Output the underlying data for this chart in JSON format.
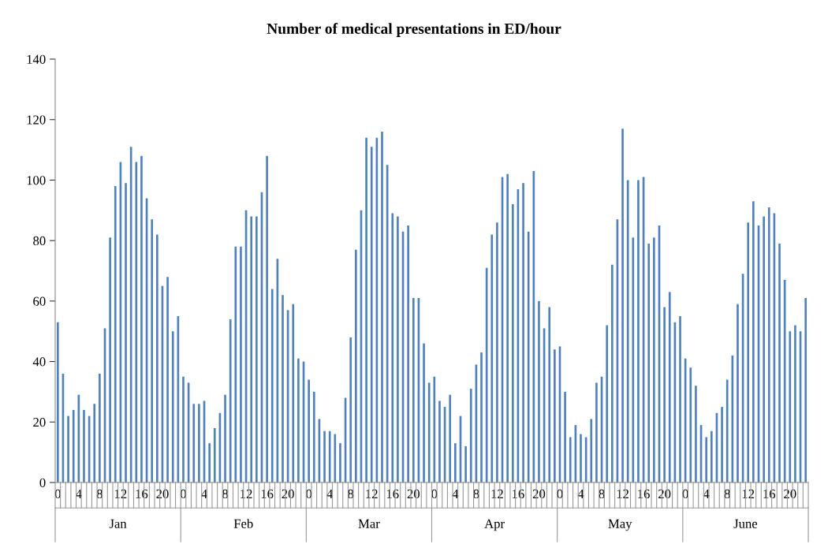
{
  "chart_data": {
    "type": "bar",
    "title": "Number of medical presentations in ED/hour",
    "categories": [
      "0",
      null,
      null,
      null,
      "4",
      null,
      null,
      null,
      "8",
      null,
      null,
      null,
      "12",
      null,
      null,
      null,
      "16",
      null,
      null,
      null,
      "20",
      null,
      null,
      null,
      "0",
      null,
      null,
      null,
      "4",
      null,
      null,
      null,
      "8",
      null,
      null,
      null,
      "12",
      null,
      null,
      null,
      "16",
      null,
      null,
      null,
      "20",
      null,
      null,
      null,
      "0",
      null,
      null,
      null,
      "4",
      null,
      null,
      null,
      "8",
      null,
      null,
      null,
      "12",
      null,
      null,
      null,
      "16",
      null,
      null,
      null,
      "20",
      null,
      null,
      null,
      "0",
      null,
      null,
      null,
      "4",
      null,
      null,
      null,
      "8",
      null,
      null,
      null,
      "12",
      null,
      null,
      null,
      "16",
      null,
      null,
      null,
      "20",
      null,
      null,
      null,
      "0",
      null,
      null,
      null,
      "4",
      null,
      null,
      null,
      "8",
      null,
      null,
      null,
      "12",
      null,
      null,
      null,
      "16",
      null,
      null,
      null,
      "20",
      null,
      null,
      null,
      "0",
      null,
      null,
      null,
      "4",
      null,
      null,
      null,
      "8",
      null,
      null,
      null,
      "12",
      null,
      null,
      null,
      "16",
      null,
      null,
      null,
      "20",
      null,
      null,
      null
    ],
    "values": [
      53,
      36,
      22,
      24,
      29,
      24,
      22,
      26,
      36,
      51,
      81,
      98,
      106,
      99,
      111,
      106,
      108,
      94,
      87,
      82,
      65,
      68,
      50,
      55,
      35,
      33,
      26,
      26,
      27,
      13,
      18,
      23,
      29,
      54,
      78,
      78,
      90,
      88,
      88,
      96,
      108,
      64,
      74,
      62,
      57,
      59,
      41,
      40,
      34,
      30,
      21,
      17,
      17,
      16,
      13,
      28,
      48,
      77,
      90,
      114,
      111,
      114,
      116,
      105,
      89,
      88,
      83,
      85,
      61,
      61,
      46,
      33,
      35,
      27,
      25,
      29,
      13,
      22,
      12,
      31,
      39,
      43,
      71,
      82,
      86,
      101,
      102,
      92,
      97,
      99,
      83,
      103,
      60,
      51,
      58,
      44,
      45,
      30,
      15,
      19,
      16,
      15,
      21,
      33,
      35,
      52,
      72,
      87,
      117,
      100,
      81,
      100,
      101,
      79,
      81,
      85,
      58,
      63,
      53,
      55,
      41,
      38,
      32,
      19,
      15,
      17,
      23,
      25,
      34,
      42,
      59,
      69,
      86,
      93,
      85,
      88,
      91,
      89,
      79,
      67,
      50,
      52,
      50,
      61
    ],
    "color": "#4f81bd",
    "ylim": [
      0,
      140
    ],
    "yticks": [
      0,
      20,
      40,
      60,
      80,
      100,
      120,
      140
    ],
    "grid": false,
    "annotations": [
      "Jan",
      "Feb",
      "Mar",
      "Apr",
      "May",
      "June"
    ]
  }
}
